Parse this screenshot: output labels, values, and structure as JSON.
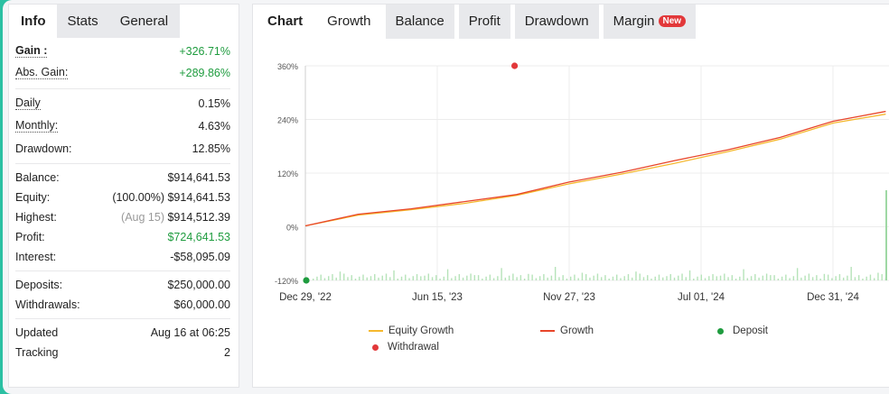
{
  "left_panel": {
    "tabs": [
      {
        "label": "Info"
      },
      {
        "label": "Stats"
      },
      {
        "label": "General"
      }
    ],
    "rows": {
      "gain": {
        "label": "Gain :",
        "value": "+326.71%"
      },
      "abs_gain": {
        "label": "Abs. Gain:",
        "value": "+289.86%"
      },
      "daily": {
        "label": "Daily",
        "value": "0.15%"
      },
      "monthly": {
        "label": "Monthly:",
        "value": "4.63%"
      },
      "drawdown": {
        "label": "Drawdown:",
        "value": "12.85%"
      },
      "balance": {
        "label": "Balance:",
        "value": "$914,641.53"
      },
      "equity": {
        "label": "Equity:",
        "note": "(100.00%)",
        "value": "$914,641.53"
      },
      "highest": {
        "label": "Highest:",
        "note": "(Aug 15)",
        "value": "$914,512.39"
      },
      "profit": {
        "label": "Profit:",
        "value": "$724,641.53"
      },
      "interest": {
        "label": "Interest:",
        "value": "-$58,095.09"
      },
      "deposits": {
        "label": "Deposits:",
        "value": "$250,000.00"
      },
      "withdrawals": {
        "label": "Withdrawals:",
        "value": "$60,000.00"
      },
      "updated": {
        "label": "Updated",
        "value": "Aug 16 at 06:25"
      },
      "tracking": {
        "label": "Tracking",
        "value": "2"
      }
    }
  },
  "chart_panel": {
    "title": "Chart",
    "tabs": [
      {
        "label": "Growth"
      },
      {
        "label": "Balance"
      },
      {
        "label": "Profit"
      },
      {
        "label": "Drawdown"
      },
      {
        "label": "Margin"
      }
    ],
    "badge": "New",
    "legend": {
      "equity_growth": "Equity Growth",
      "growth": "Growth",
      "deposit": "Deposit",
      "withdrawal": "Withdrawal"
    }
  },
  "colors": {
    "equity": "#f5b82e",
    "growth": "#e8462a",
    "deposit": "#1f9c3f",
    "withdrawal": "#e2383a",
    "gain_green": "#1f9c3f",
    "background_accent": "#2bc0a3"
  },
  "chart_data": {
    "type": "line",
    "x_tick_labels": [
      "Dec 29, '22",
      "Jun 15, '23",
      "Nov 27, '23",
      "Jul 01, '24",
      "Dec 31, '24"
    ],
    "y_tick_labels": [
      "360%",
      "240%",
      "120%",
      "0%",
      "-120%"
    ],
    "y_ticks": [
      360,
      240,
      120,
      0,
      -120
    ],
    "ylim": [
      -120,
      360
    ],
    "x": [
      "Dec 29, '22",
      "Feb 15, '23",
      "Apr 01, '23",
      "Jun 15, '23",
      "Sep 01, '23",
      "Nov 27, '23",
      "Jan 15, '24",
      "Apr 01, '24",
      "Jul 01, '24",
      "Sep 15, '24",
      "Dec 31, '24",
      "Feb 15, '25"
    ],
    "series": [
      {
        "name": "Growth",
        "values": [
          2,
          28,
          40,
          56,
          72,
          100,
          122,
          148,
          172,
          200,
          236,
          258
        ]
      },
      {
        "name": "Equity Growth",
        "values": [
          2,
          26,
          38,
          52,
          70,
          96,
          118,
          142,
          168,
          196,
          232,
          252
        ]
      }
    ],
    "markers": [
      {
        "name": "Deposit",
        "x": "Dec 29, '22",
        "y": -120
      },
      {
        "name": "Withdrawal",
        "x": "Sep 01, '23",
        "y": 360
      }
    ],
    "grid": true,
    "legend_position": "bottom"
  }
}
